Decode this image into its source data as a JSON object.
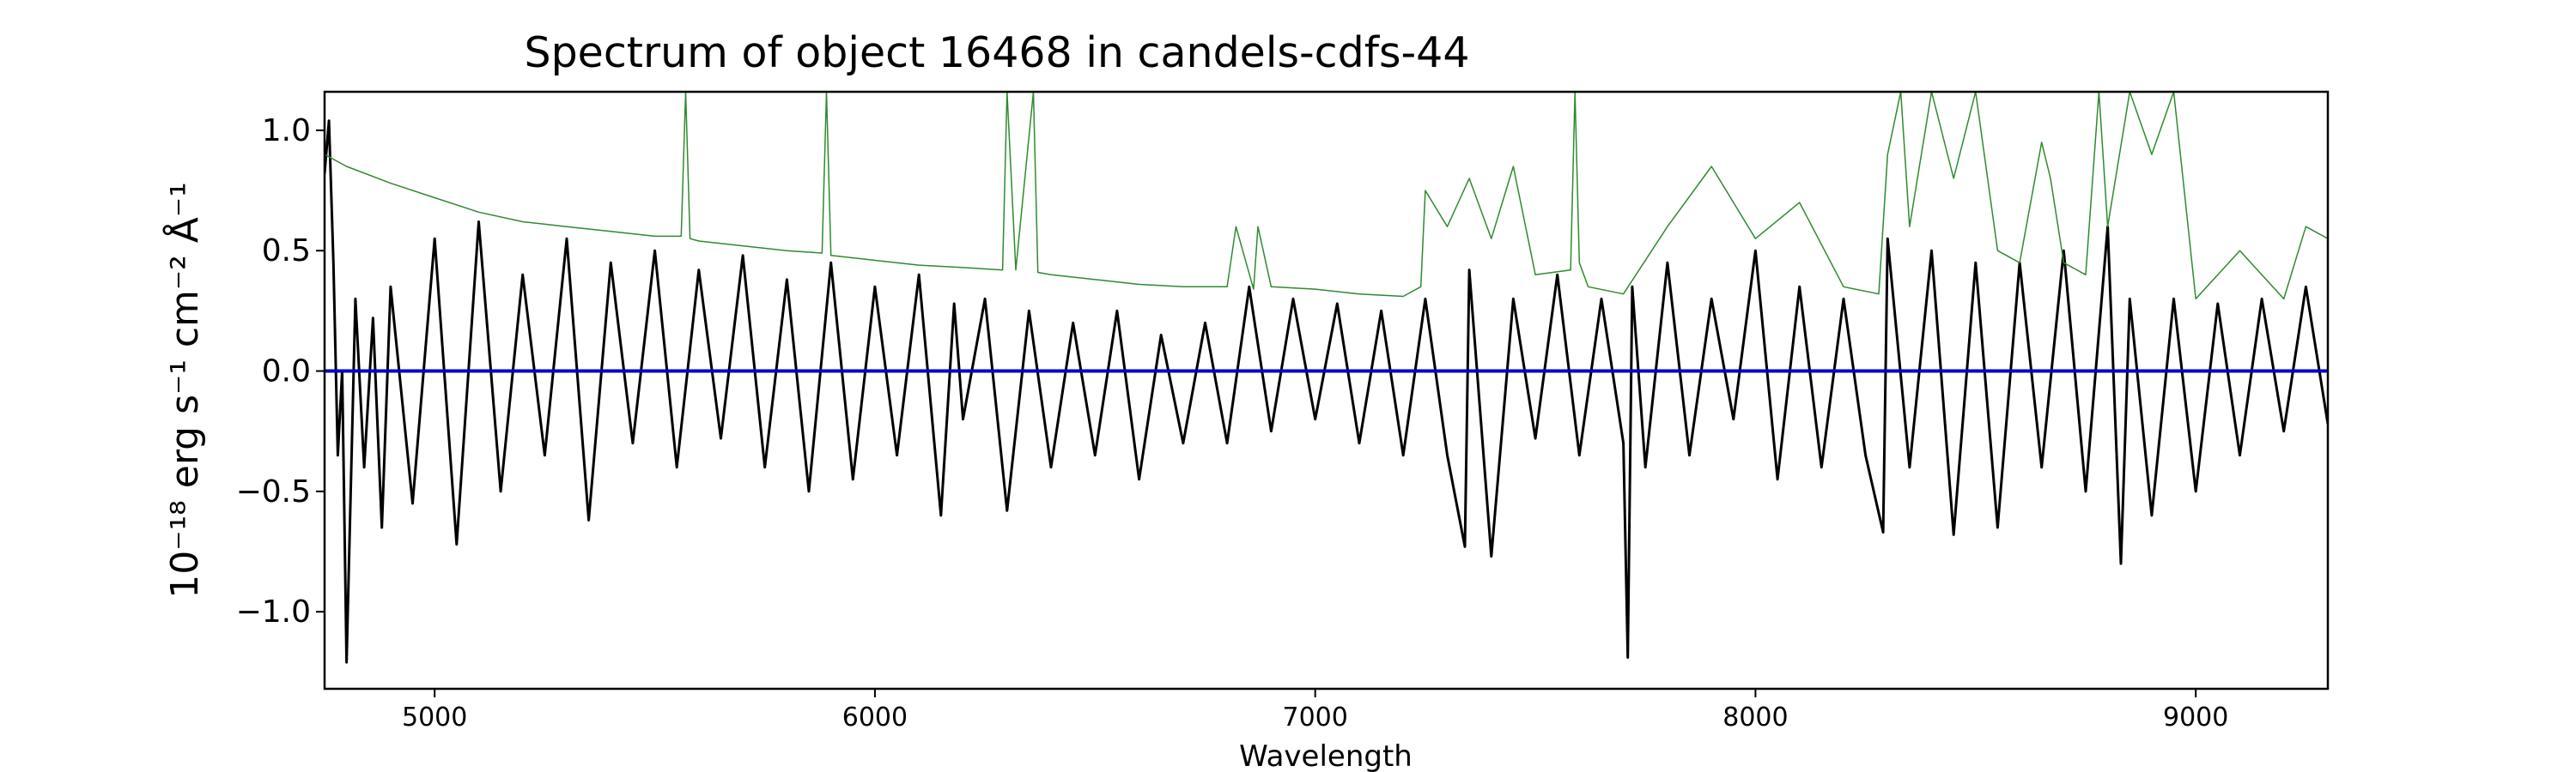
{
  "chart_data": {
    "type": "line",
    "title": "Spectrum of object 16468 in candels-cdfs-44",
    "xlabel": "Wavelength",
    "ylabel": "10⁻¹⁸ erg s⁻¹ cm⁻² Å⁻¹",
    "xlim": [
      4750,
      9300
    ],
    "ylim": [
      -1.32,
      1.16
    ],
    "xticks": [
      5000,
      6000,
      7000,
      8000,
      9000
    ],
    "xtick_labels": [
      "5000",
      "6000",
      "7000",
      "8000",
      "9000"
    ],
    "yticks": [
      1.0,
      0.5,
      0.0,
      -0.5,
      -1.0
    ],
    "ytick_labels": [
      "1.0",
      "0.5",
      "0.0",
      "−0.5",
      "−1.0"
    ],
    "grid": false,
    "legend": "none",
    "colors": {
      "flux": "#000000",
      "error": "#2e8b2e",
      "zero_line": "#0000cc"
    },
    "series": [
      {
        "role": "flux",
        "x": [
          4750,
          4760,
          4770,
          4780,
          4790,
          4800,
          4820,
          4840,
          4860,
          4880,
          4900,
          4950,
          5000,
          5050,
          5100,
          5150,
          5200,
          5250,
          5300,
          5350,
          5400,
          5450,
          5500,
          5550,
          5600,
          5650,
          5700,
          5750,
          5800,
          5850,
          5900,
          5950,
          6000,
          6050,
          6100,
          6150,
          6180,
          6200,
          6250,
          6300,
          6350,
          6400,
          6450,
          6500,
          6550,
          6600,
          6650,
          6700,
          6750,
          6800,
          6850,
          6900,
          6950,
          7000,
          7050,
          7100,
          7150,
          7200,
          7250,
          7300,
          7340,
          7350,
          7400,
          7450,
          7500,
          7550,
          7600,
          7650,
          7700,
          7710,
          7720,
          7750,
          7800,
          7850,
          7900,
          7950,
          8000,
          8050,
          8100,
          8150,
          8200,
          8250,
          8290,
          8300,
          8350,
          8400,
          8450,
          8500,
          8550,
          8600,
          8650,
          8700,
          8750,
          8800,
          8830,
          8850,
          8900,
          8950,
          9000,
          9050,
          9100,
          9150,
          9200,
          9250,
          9300
        ],
        "y": [
          0.82,
          1.04,
          0.45,
          -0.35,
          0.0,
          -1.21,
          0.3,
          -0.4,
          0.22,
          -0.65,
          0.35,
          -0.55,
          0.55,
          -0.72,
          0.62,
          -0.5,
          0.4,
          -0.35,
          0.55,
          -0.62,
          0.45,
          -0.3,
          0.5,
          -0.4,
          0.42,
          -0.28,
          0.48,
          -0.4,
          0.38,
          -0.5,
          0.45,
          -0.45,
          0.35,
          -0.35,
          0.4,
          -0.6,
          0.28,
          -0.2,
          0.3,
          -0.58,
          0.25,
          -0.4,
          0.2,
          -0.35,
          0.25,
          -0.45,
          0.15,
          -0.3,
          0.2,
          -0.3,
          0.35,
          -0.25,
          0.3,
          -0.2,
          0.28,
          -0.3,
          0.25,
          -0.35,
          0.3,
          -0.35,
          -0.73,
          0.42,
          -0.77,
          0.3,
          -0.28,
          0.4,
          -0.35,
          0.3,
          -0.3,
          -1.19,
          0.35,
          -0.4,
          0.45,
          -0.35,
          0.3,
          -0.2,
          0.5,
          -0.45,
          0.35,
          -0.4,
          0.3,
          -0.35,
          -0.67,
          0.55,
          -0.4,
          0.5,
          -0.68,
          0.45,
          -0.65,
          0.45,
          -0.4,
          0.5,
          -0.5,
          0.6,
          -0.8,
          0.3,
          -0.6,
          0.3,
          -0.5,
          0.28,
          -0.35,
          0.3,
          -0.25,
          0.35,
          -0.22
        ]
      },
      {
        "role": "error",
        "x": [
          4750,
          4800,
          4900,
          5000,
          5100,
          5200,
          5300,
          5400,
          5500,
          5560,
          5570,
          5580,
          5600,
          5700,
          5800,
          5880,
          5890,
          5900,
          6000,
          6100,
          6200,
          6290,
          6300,
          6320,
          6360,
          6370,
          6400,
          6500,
          6600,
          6700,
          6800,
          6820,
          6860,
          6870,
          6900,
          7000,
          7100,
          7200,
          7240,
          7250,
          7300,
          7350,
          7400,
          7450,
          7500,
          7580,
          7590,
          7600,
          7620,
          7700,
          7800,
          7900,
          8000,
          8100,
          8200,
          8280,
          8300,
          8330,
          8350,
          8400,
          8450,
          8500,
          8550,
          8600,
          8650,
          8670,
          8700,
          8750,
          8780,
          8800,
          8850,
          8900,
          8950,
          9000,
          9100,
          9200,
          9250,
          9300
        ],
        "y": [
          0.9,
          0.85,
          0.78,
          0.72,
          0.66,
          0.62,
          0.6,
          0.58,
          0.56,
          0.56,
          1.16,
          0.55,
          0.54,
          0.52,
          0.5,
          0.49,
          1.16,
          0.48,
          0.46,
          0.44,
          0.43,
          0.42,
          1.16,
          0.42,
          1.16,
          0.41,
          0.4,
          0.38,
          0.36,
          0.35,
          0.35,
          0.6,
          0.34,
          0.6,
          0.35,
          0.34,
          0.32,
          0.31,
          0.35,
          0.75,
          0.6,
          0.8,
          0.55,
          0.85,
          0.4,
          0.42,
          1.16,
          0.45,
          0.35,
          0.32,
          0.6,
          0.85,
          0.55,
          0.7,
          0.35,
          0.32,
          0.9,
          1.16,
          0.6,
          1.16,
          0.8,
          1.16,
          0.5,
          0.45,
          0.95,
          0.8,
          0.45,
          0.4,
          1.16,
          0.6,
          1.16,
          0.9,
          1.16,
          0.3,
          0.5,
          0.3,
          0.6,
          0.55
        ]
      }
    ]
  }
}
